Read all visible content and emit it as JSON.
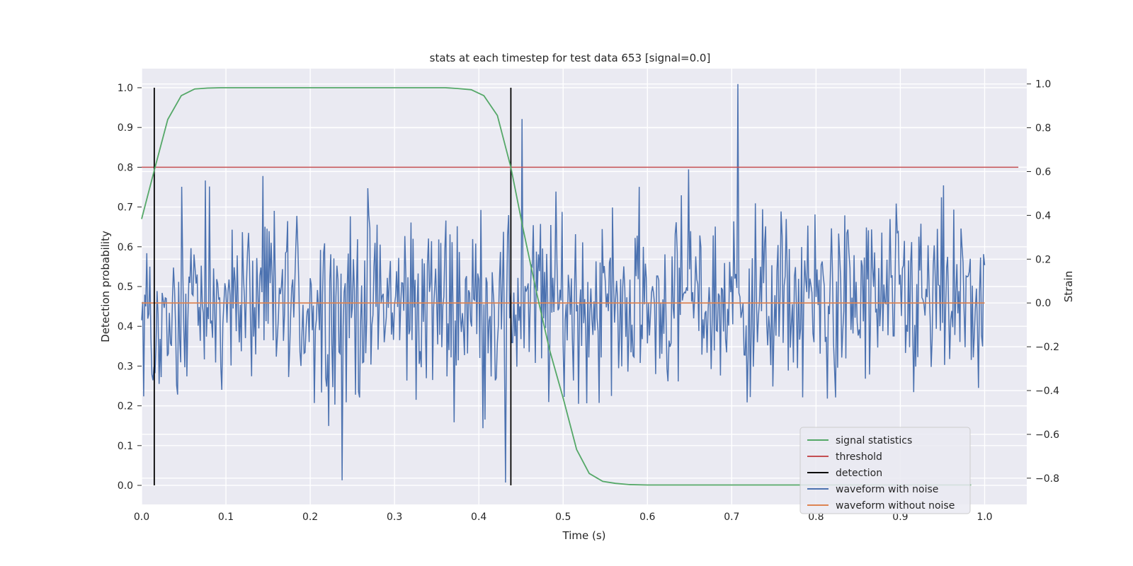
{
  "chart_data": {
    "type": "line",
    "title": "stats at each timestep for test data 653 [signal=0.0]",
    "xlabel": "Time (s)",
    "ylabel": "Detection probability",
    "ylabel_right": "Strain",
    "xlim": [
      0.0,
      1.05
    ],
    "ylim": [
      -0.048,
      1.048
    ],
    "ylim_right": [
      -0.92,
      1.07
    ],
    "xticks": [
      "0.0",
      "0.1",
      "0.2",
      "0.3",
      "0.4",
      "0.5",
      "0.6",
      "0.7",
      "0.8",
      "0.9",
      "1.0"
    ],
    "yticks": [
      "0.0",
      "0.1",
      "0.2",
      "0.3",
      "0.4",
      "0.5",
      "0.6",
      "0.7",
      "0.8",
      "0.9",
      "1.0"
    ],
    "yticks_right": [
      "−0.8",
      "−0.6",
      "−0.4",
      "−0.2",
      "0.0",
      "0.2",
      "0.4",
      "0.6",
      "0.8",
      "1.0"
    ],
    "grid": true,
    "legend_position": "lower-right",
    "colors": {
      "signal_statistics": "#55a868",
      "threshold": "#c44e52",
      "detection": "#000000",
      "waveform_with_noise": "#4c72b0",
      "waveform_without_noise": "#dd8452",
      "background": "#eaeaf2",
      "grid": "#ffffff"
    },
    "series": [
      {
        "name": "signal statistics",
        "axis": "left",
        "x": [
          0.0,
          0.016,
          0.031,
          0.047,
          0.063,
          0.078,
          0.094,
          0.2,
          0.3,
          0.36,
          0.375,
          0.391,
          0.406,
          0.422,
          0.438,
          0.453,
          0.469,
          0.484,
          0.5,
          0.516,
          0.531,
          0.547,
          0.562,
          0.578,
          0.6,
          0.7,
          0.8,
          0.9,
          0.984
        ],
        "values": [
          0.67,
          0.8,
          0.92,
          0.98,
          0.997,
          0.999,
          1.0,
          1.0,
          1.0,
          1.0,
          0.998,
          0.995,
          0.98,
          0.93,
          0.8,
          0.64,
          0.48,
          0.34,
          0.22,
          0.09,
          0.03,
          0.01,
          0.005,
          0.002,
          0.001,
          0.001,
          0.001,
          0.001,
          0.001
        ]
      },
      {
        "name": "threshold",
        "axis": "left",
        "x": [
          0.0,
          1.04
        ],
        "values": [
          0.8,
          0.8
        ]
      },
      {
        "name": "detection",
        "axis": "left",
        "x": [
          0.015,
          0.438
        ],
        "values": [
          1.0,
          1.0
        ]
      },
      {
        "name": "waveform with noise",
        "axis": "right",
        "x_range": [
          0.0,
          1.0
        ],
        "value_range": [
          -0.83,
          1.0
        ],
        "values": []
      },
      {
        "name": "waveform without noise",
        "axis": "right",
        "x": [
          0.0,
          1.0
        ],
        "values": [
          0.0,
          0.0
        ]
      }
    ]
  }
}
